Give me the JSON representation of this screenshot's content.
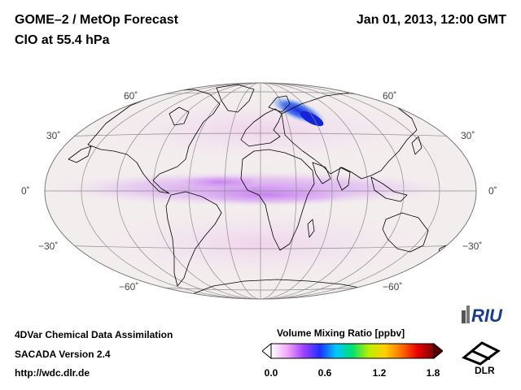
{
  "header": {
    "title": "GOME–2 / MetOp Forecast",
    "species": "ClO at 55.4 hPa",
    "datetime": "Jan 01, 2013, 12:00 GMT"
  },
  "map": {
    "projection": "Hammer-Aitoff (global)",
    "lat_labels": {
      "n60": "60˚",
      "n30": "30˚",
      "eq": "0˚",
      "s30": "−30˚",
      "s60": "−60˚"
    },
    "colors": {
      "background": "#f3eeee",
      "graticule": "#8c8c8c",
      "coast": "#000000",
      "tropical_band": "#cc88f0",
      "arctic_patch": "#2a34e8"
    }
  },
  "footer": {
    "line1": "4DVar Chemical Data Assimilation",
    "line2": "SACADA Version 2.4",
    "url": "http://wdc.dlr.de"
  },
  "colorbar": {
    "title": "Volume Mixing Ratio [ppbv]",
    "ticks": [
      "0.0",
      "0.6",
      "1.2",
      "1.8"
    ],
    "colors": [
      "#ffffff",
      "#f0a8f8",
      "#a040ff",
      "#2030ff",
      "#00c8ff",
      "#00e070",
      "#b8f000",
      "#ffd000",
      "#ff7000",
      "#e80000",
      "#800000"
    ]
  },
  "logos": {
    "riu": "RIU",
    "dlr": "DLR"
  }
}
